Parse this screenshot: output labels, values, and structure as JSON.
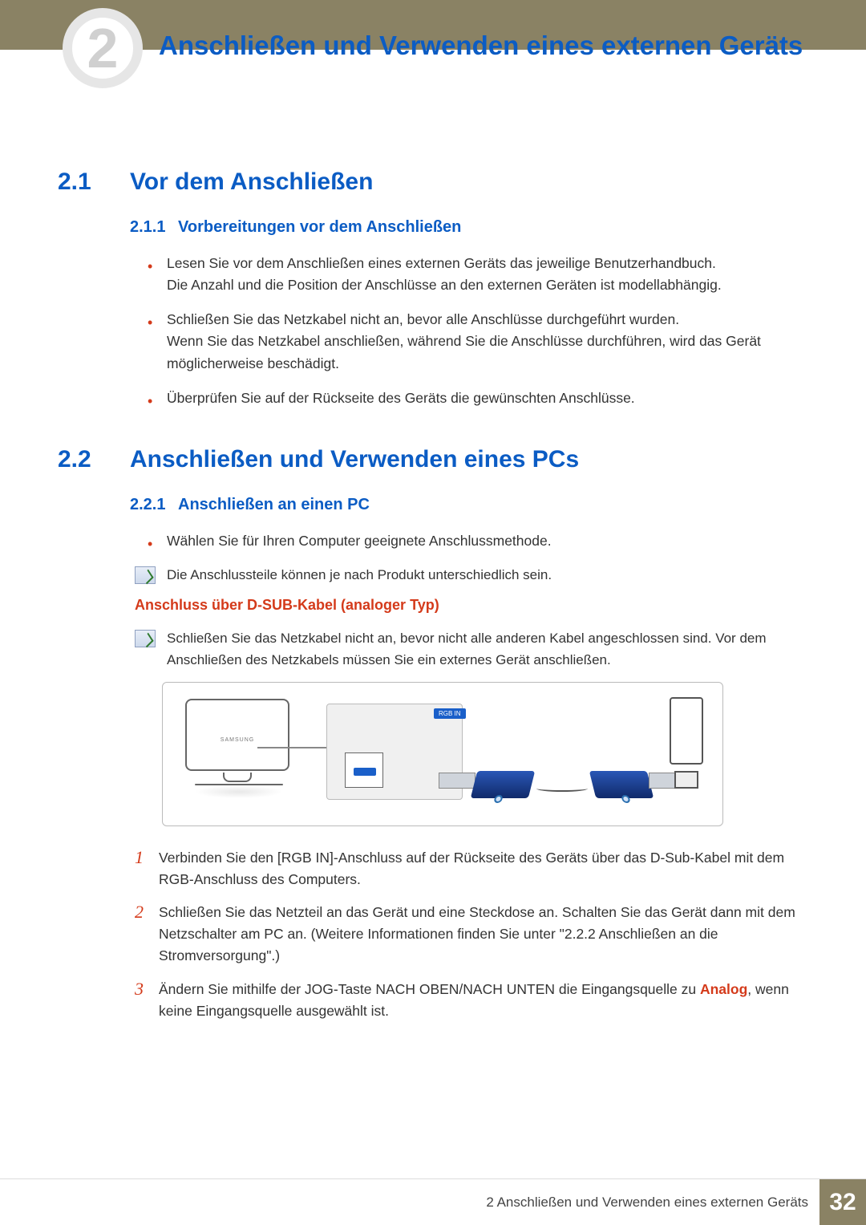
{
  "header": {
    "chapter_number": "2",
    "chapter_title": "Anschließen und Verwenden eines externen Geräts"
  },
  "sections": {
    "s21": {
      "num": "2.1",
      "title": "Vor dem Anschließen"
    },
    "s211": {
      "num": "2.1.1",
      "title": "Vorbereitungen vor dem Anschließen"
    },
    "s22": {
      "num": "2.2",
      "title": "Anschließen und Verwenden eines PCs"
    },
    "s221": {
      "num": "2.2.1",
      "title": "Anschließen an einen PC"
    }
  },
  "bullets_211": {
    "b1a": "Lesen Sie vor dem Anschließen eines externen Geräts das jeweilige Benutzerhandbuch.",
    "b1b": "Die Anzahl und die Position der Anschlüsse an den externen Geräten ist modellabhängig.",
    "b2a": "Schließen Sie das Netzkabel nicht an, bevor alle Anschlüsse durchgeführt wurden.",
    "b2b": "Wenn Sie das Netzkabel anschließen, während Sie die Anschlüsse durchführen, wird das Gerät möglicherweise beschädigt.",
    "b3": "Überprüfen Sie auf der Rückseite des Geräts die gewünschten Anschlüsse."
  },
  "bullets_221": {
    "b1": "Wählen Sie für Ihren Computer geeignete Anschlussmethode."
  },
  "notes": {
    "n1": "Die Anschlussteile können je nach Produkt unterschiedlich sein.",
    "n2": "Schließen Sie das Netzkabel nicht an, bevor nicht alle anderen Kabel angeschlossen sind. Vor dem Anschließen des Netzkabels müssen Sie ein externes Gerät anschließen."
  },
  "redheads": {
    "dsub": "Anschluss über D-SUB-Kabel (analoger Typ)"
  },
  "diagram": {
    "brand": "SAMSUNG",
    "port_label": "RGB IN",
    "connector_color": "#1a5fc9",
    "border_color": "#666666"
  },
  "numbered": {
    "n1": {
      "num": "1",
      "text": "Verbinden Sie den [RGB IN]-Anschluss auf der Rückseite des Geräts über das D-Sub-Kabel mit dem RGB-Anschluss des Computers."
    },
    "n2": {
      "num": "2",
      "text": "Schließen Sie das Netzteil an das Gerät und eine Steckdose an. Schalten Sie das Gerät dann mit dem Netzschalter am PC an. (Weitere Informationen finden Sie unter \"2.2.2    Anschließen an die Stromversorgung\".)"
    },
    "n3": {
      "num": "3",
      "pre": "Ändern Sie mithilfe der JOG-Taste NACH OBEN/NACH UNTEN die Eingangsquelle zu ",
      "hl": "Analog",
      "post": ", wenn keine Eingangsquelle ausgewählt ist."
    }
  },
  "footer": {
    "text": "2 Anschließen und Verwenden eines externen Geräts",
    "page": "32"
  }
}
